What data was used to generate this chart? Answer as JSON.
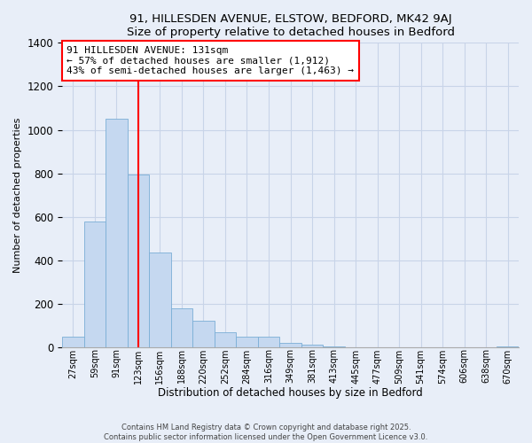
{
  "title1": "91, HILLESDEN AVENUE, ELSTOW, BEDFORD, MK42 9AJ",
  "title2": "Size of property relative to detached houses in Bedford",
  "xlabel": "Distribution of detached houses by size in Bedford",
  "ylabel": "Number of detached properties",
  "bar_labels": [
    "27sqm",
    "59sqm",
    "91sqm",
    "123sqm",
    "156sqm",
    "188sqm",
    "220sqm",
    "252sqm",
    "284sqm",
    "316sqm",
    "349sqm",
    "381sqm",
    "413sqm",
    "445sqm",
    "477sqm",
    "509sqm",
    "541sqm",
    "574sqm",
    "606sqm",
    "638sqm",
    "670sqm"
  ],
  "bar_heights": [
    50,
    580,
    1050,
    795,
    435,
    178,
    120,
    68,
    48,
    48,
    22,
    12,
    4,
    0,
    0,
    0,
    0,
    0,
    0,
    0,
    5
  ],
  "bar_color": "#c5d8f0",
  "bar_edge_color": "#7aaed6",
  "bar_width": 1.0,
  "vline_x": 3,
  "vline_color": "red",
  "ylim": [
    0,
    1400
  ],
  "yticks": [
    0,
    200,
    400,
    600,
    800,
    1000,
    1200,
    1400
  ],
  "annotation_title": "91 HILLESDEN AVENUE: 131sqm",
  "annotation_line1": "← 57% of detached houses are smaller (1,912)",
  "annotation_line2": "43% of semi-detached houses are larger (1,463) →",
  "footer1": "Contains HM Land Registry data © Crown copyright and database right 2025.",
  "footer2": "Contains public sector information licensed under the Open Government Licence v3.0.",
  "background_color": "#e8eef8",
  "plot_background": "#e8eef8",
  "grid_color": "#c8d4e8"
}
